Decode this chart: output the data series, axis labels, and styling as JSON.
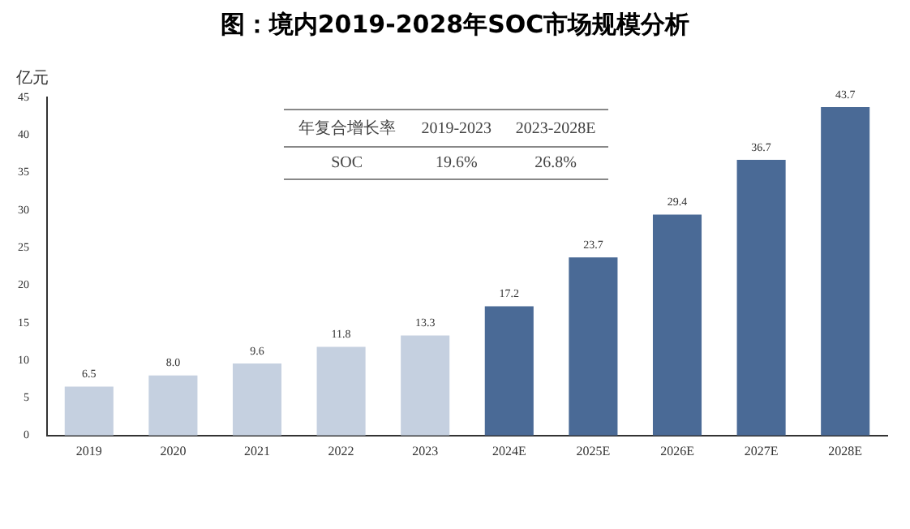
{
  "chart_data": {
    "type": "bar",
    "title": "图：境内2019-2028年SOC市场规模分析",
    "ylabel": "亿元",
    "categories": [
      "2019",
      "2020",
      "2021",
      "2022",
      "2023",
      "2024E",
      "2025E",
      "2026E",
      "2027E",
      "2028E"
    ],
    "values": [
      6.5,
      8.0,
      9.6,
      11.8,
      13.3,
      17.2,
      23.7,
      29.4,
      36.7,
      43.7
    ],
    "colors": [
      "#c5d0e0",
      "#c5d0e0",
      "#c5d0e0",
      "#c5d0e0",
      "#c5d0e0",
      "#4a6a96",
      "#4a6a96",
      "#4a6a96",
      "#4a6a96",
      "#4a6a96"
    ],
    "value_labels": [
      "6.5",
      "8.0",
      "9.6",
      "11.8",
      "13.3",
      "17.2",
      "23.7",
      "29.4",
      "36.7",
      "43.7"
    ],
    "ylim": [
      0,
      45
    ],
    "yticks": [
      0,
      5,
      10,
      15,
      20,
      25,
      30,
      35,
      40,
      45
    ],
    "grid": false,
    "legend": false,
    "annotations": [
      "年复合增长率",
      "2019-2023",
      "2023-2028E",
      "SOC",
      "19.6%",
      "26.8%"
    ]
  }
}
